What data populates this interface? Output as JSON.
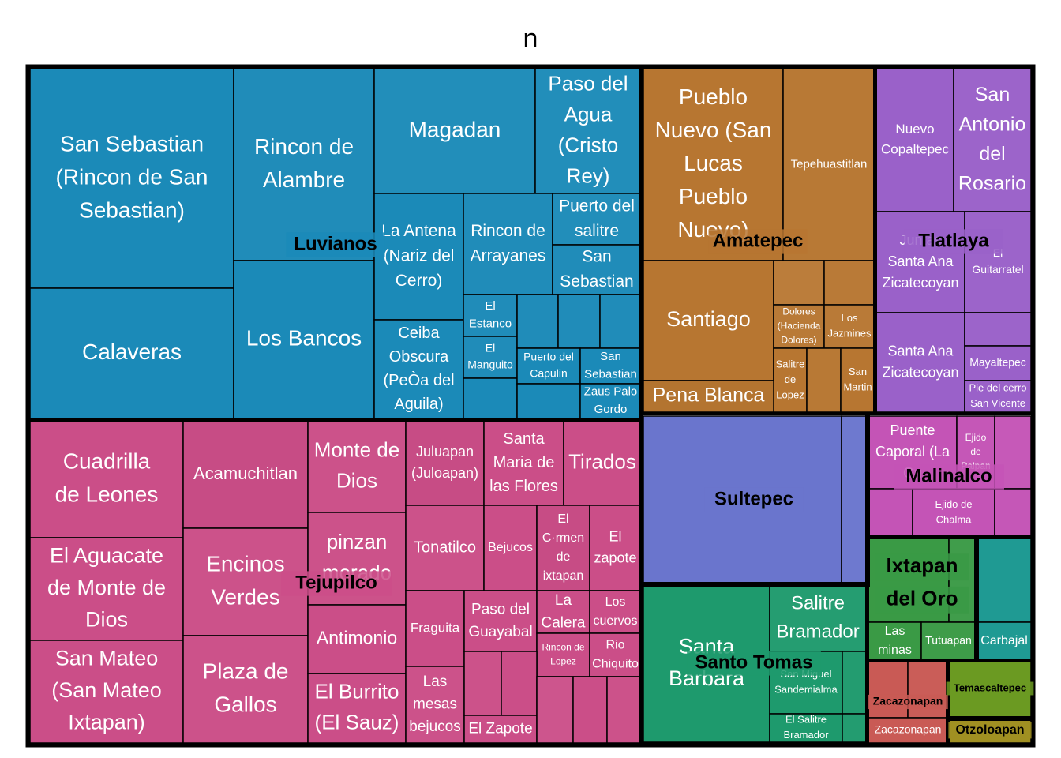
{
  "chart_data": {
    "type": "treemap",
    "title": "n",
    "groups": [
      {
        "name": "Luvianos",
        "color": "#1b8ab8",
        "items": [
          "San Sebastian (Rincon de San Sebastian)",
          "Calaveras",
          "Rincon de Alambre",
          "Los Bancos",
          "Magadan",
          "Paso del Agua (Cristo Rey)",
          "La Antena (Nariz del Cerro)",
          "Rincon de Arrayanes",
          "Puerto del salitre",
          "San Sebastian",
          "Ceiba Obscura (PeÒa del Aguila)",
          "El Estanco",
          "El Manguito",
          "Puerto del Capulin",
          "San Sebastian",
          "Zaus Palo Gordo"
        ]
      },
      {
        "name": "Amatepec",
        "color": "#b77631",
        "items": [
          "Pueblo Nuevo (San Lucas Pueblo Nuevo)",
          "Tepehuastitlan",
          "Santiago",
          "Dolores (Hacienda Dolores)",
          "Los Jazmines",
          "Salitre de Lopez",
          "San Martin",
          "Pena Blanca"
        ]
      },
      {
        "name": "Tlatlaya",
        "color": "#9a61c9",
        "items": [
          "Nuevo Copaltepec",
          "San Antonio del Rosario",
          "Juntas Santa Ana Zicatecoyan",
          "El Guitarratel",
          "Santa Ana Zicatecoyan",
          "Mayaltepec",
          "Pie del cerro San Vicente"
        ]
      },
      {
        "name": "Tejupilco",
        "color": "#cb4e88",
        "items": [
          "Cuadrilla de Leones",
          "Acamuchitlan",
          "Monte de Dios",
          "Juluapan (Juloapan)",
          "Santa Maria de las Flores",
          "Tirados",
          "El Aguacate de Monte de Dios",
          "Encinos Verdes",
          "pinzan morado",
          "Tonatilco",
          "Bejucos",
          "El C·rmen de ixtapan",
          "El zapote",
          "San Mateo (San Mateo Ixtapan)",
          "Plaza de Gallos",
          "Antimonio",
          "El Burrito (El Sauz)",
          "Fraguita",
          "Paso del Guayabal",
          "La Calera",
          "Los cuervos",
          "Rincon de Lopez",
          "Rio Chiquito",
          "Las mesas bejucos",
          "El Zapote"
        ]
      },
      {
        "name": "Sultepec",
        "color": "#6a75cd",
        "items": []
      },
      {
        "name": "Malinalco",
        "color": "#c454b6",
        "items": [
          "Puente Caporal (La Gu",
          "Ejido de Palpan",
          "Ejido de Chalma"
        ]
      },
      {
        "name": "Santo Tomas",
        "color": "#1e9a6d",
        "items": [
          "Santa Barbara",
          "Salitre Bramador",
          "San Miguel Sandemialma",
          "El Salitre Bramador"
        ]
      },
      {
        "name": "Ixtapan del Oro",
        "color": "#3a9a45",
        "items": [
          "Las minas",
          "Tutuapan"
        ]
      },
      {
        "name": "",
        "color": "#1f9a93",
        "items": [
          "Carbajal"
        ]
      },
      {
        "name": "Zacazonapan",
        "color": "#c95a55",
        "items": [
          "Zacazonapan"
        ]
      },
      {
        "name": "Temascaltepec",
        "color": "#6b9a22",
        "items": []
      },
      {
        "name": "Otzoloapan",
        "color": "#a09022",
        "items": []
      }
    ]
  }
}
